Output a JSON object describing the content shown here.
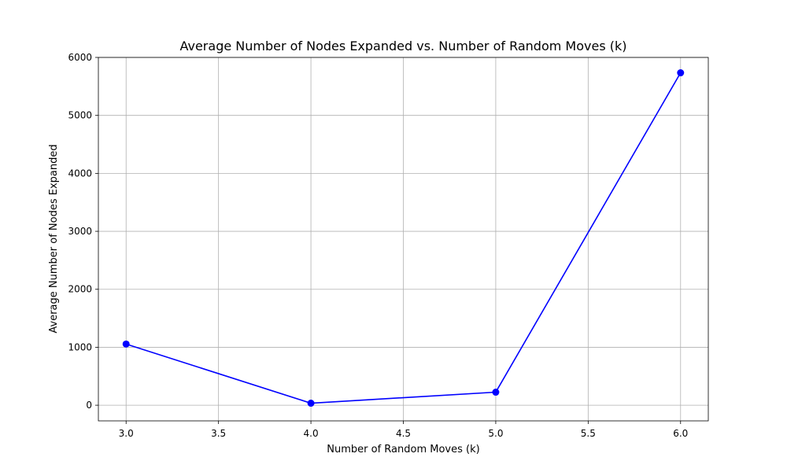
{
  "chart_data": {
    "type": "line",
    "title": "Average Number of Nodes Expanded vs. Number of Random Moves (k)",
    "xlabel": "Number of Random Moves (k)",
    "ylabel": "Average Number of Nodes Expanded",
    "x": [
      3,
      4,
      5,
      6
    ],
    "series": [
      {
        "values": [
          1055,
          35,
          225,
          5735
        ]
      }
    ],
    "xlim": [
      2.85,
      6.15
    ],
    "ylim": [
      -270,
      6000
    ],
    "xticks": [
      3.0,
      3.5,
      4.0,
      4.5,
      5.0,
      5.5,
      6.0
    ],
    "xtick_labels": [
      "3.0",
      "3.5",
      "4.0",
      "4.5",
      "5.0",
      "5.5",
      "6.0"
    ],
    "yticks": [
      0,
      1000,
      2000,
      3000,
      4000,
      5000,
      6000
    ],
    "ytick_labels": [
      "0",
      "1000",
      "2000",
      "3000",
      "4000",
      "5000",
      "6000"
    ],
    "grid": true,
    "marker": "circle",
    "colors": {
      "line": "#0000ff",
      "grid": "#b0b0b0",
      "axes": "#000000"
    }
  }
}
